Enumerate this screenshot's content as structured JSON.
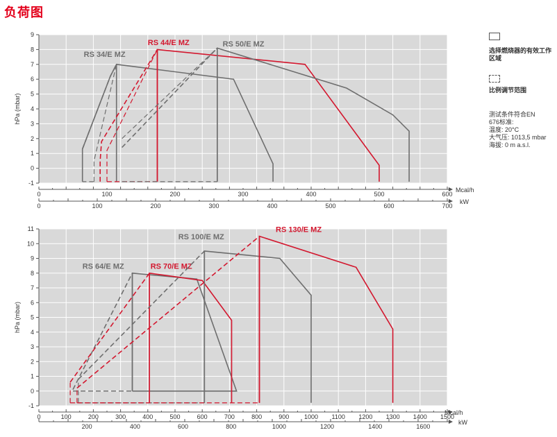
{
  "page_title": "负荷图",
  "legend": {
    "working_area_label": "选择燃烧器的有效工作区域",
    "modulation_label": "比例调节范围",
    "conditions_lines": [
      "测试条件符合EN",
      "676标准:",
      "温度: 20°C",
      "大气压: 1013,5 mbar",
      "海拔: 0 m a.s.l."
    ]
  },
  "colors": {
    "red": "#d3172e",
    "gray": "#6e6e6e",
    "plot_bg": "#d9d9d9",
    "grid": "#ffffff"
  },
  "chart_data": [
    {
      "type": "line",
      "ylabel": "hPa (mbar)",
      "ylim": [
        -1,
        9
      ],
      "yticks": [
        -1,
        0,
        1,
        2,
        3,
        4,
        5,
        6,
        7,
        8,
        9
      ],
      "xlim_mcal": [
        0,
        600
      ],
      "x_axis_mcal": {
        "unit": "Mcal/h",
        "ticks": [
          0,
          100,
          200,
          300,
          400,
          500,
          600
        ]
      },
      "x_axis_kw": {
        "unit": "kW",
        "max": 700,
        "ticks": [
          0,
          100,
          200,
          300,
          400,
          500,
          600,
          700
        ]
      },
      "series": [
        {
          "name": "RS 34/E MZ",
          "color": "gray",
          "label_at": [
            66,
            7.5
          ],
          "solid": [
            [
              64,
              -0.9
            ],
            [
              64,
              1.3
            ],
            [
              105,
              6.2
            ],
            [
              114,
              7.0
            ],
            [
              286,
              6.0
            ],
            [
              344,
              0.3
            ],
            [
              344,
              -0.9
            ]
          ],
          "dashed": [
            [
              64,
              1.3
            ],
            [
              105,
              6.2
            ],
            [
              114,
              7.0
            ]
          ],
          "low_dashed": [
            [
              81,
              -0.9
            ],
            [
              81,
              0.5
            ],
            [
              114,
              7.0
            ]
          ],
          "max_line": [
            [
              114,
              7.0
            ],
            [
              114,
              -0.9
            ]
          ]
        },
        {
          "name": "RS 44/E MZ",
          "color": "red",
          "label_at": [
            160,
            8.3
          ],
          "solid": [
            [
              174,
              -0.9
            ],
            [
              174,
              8.0
            ],
            [
              391,
              7.0
            ],
            [
              500,
              0.2
            ],
            [
              500,
              -0.9
            ]
          ],
          "dashed": [
            [
              90,
              -0.9
            ],
            [
              90,
              0.5
            ],
            [
              92,
              1.8
            ],
            [
              174,
              8.0
            ]
          ],
          "low_dashed": [
            [
              100,
              -0.9
            ],
            [
              100,
              1.2
            ],
            [
              174,
              8.0
            ]
          ],
          "max_line": [
            [
              174,
              8.0
            ],
            [
              174,
              -0.9
            ]
          ]
        },
        {
          "name": "RS 50/E MZ",
          "color": "gray",
          "label_at": [
            270,
            8.2
          ],
          "solid": [
            [
              262,
              -0.9
            ],
            [
              262,
              8.1
            ],
            [
              452,
              5.4
            ],
            [
              520,
              3.6
            ],
            [
              544,
              2.5
            ],
            [
              544,
              -0.9
            ]
          ],
          "dashed": [
            [
              122,
              1.4
            ],
            [
              262,
              8.1
            ]
          ],
          "low_dashed": [
            [
              122,
              2.0
            ],
            [
              262,
              8.1
            ]
          ],
          "max_line": [
            [
              262,
              8.1
            ],
            [
              262,
              -0.9
            ]
          ]
        }
      ]
    },
    {
      "type": "line",
      "ylabel": "hPa (mbar)",
      "ylim": [
        -1,
        11
      ],
      "yticks": [
        -1,
        0,
        1,
        2,
        3,
        4,
        5,
        6,
        7,
        8,
        9,
        10,
        11
      ],
      "xlim_mcal": [
        0,
        1500
      ],
      "x_axis_mcal": {
        "unit": "Mcal/h",
        "ticks": [
          0,
          100,
          200,
          300,
          400,
          500,
          600,
          700,
          800,
          900,
          1000,
          1100,
          1200,
          1300,
          1400,
          1500
        ]
      },
      "x_axis_kw": {
        "unit": "kW",
        "ticks": [
          200,
          400,
          600,
          800,
          1000,
          1200,
          1400,
          1600
        ],
        "max": 1700
      },
      "series": [
        {
          "name": "RS 64/E MZ",
          "color": "gray",
          "label_at": [
            160,
            8.3
          ],
          "solid": [
            [
              343,
              0.0
            ],
            [
              343,
              8.0
            ],
            [
              580,
              7.6
            ],
            [
              726,
              0.0
            ],
            [
              343,
              0.0
            ]
          ],
          "dashed": [
            [
              125,
              0.1
            ],
            [
              343,
              8.0
            ]
          ],
          "low_dashed": [
            [
              125,
              0.0
            ],
            [
              343,
              0.0
            ]
          ],
          "max_line": [
            [
              343,
              8.0
            ],
            [
              343,
              0.0
            ]
          ]
        },
        {
          "name": "RS 70/E MZ",
          "color": "red",
          "label_at": [
            410,
            8.3
          ],
          "solid": [
            [
              406,
              -0.8
            ],
            [
              406,
              8.0
            ],
            [
              600,
              7.5
            ],
            [
              708,
              4.8
            ],
            [
              708,
              -0.8
            ]
          ],
          "dashed": [
            [
              115,
              0.6
            ],
            [
              406,
              8.0
            ]
          ],
          "low_dashed": [
            [
              115,
              -0.8
            ],
            [
              115,
              0.6
            ]
          ],
          "max_line": [
            [
              406,
              8.0
            ],
            [
              406,
              -0.8
            ]
          ]
        },
        {
          "name": "RS 100/E MZ",
          "color": "gray",
          "label_at": [
            512,
            10.3
          ],
          "solid": [
            [
              608,
              -0.8
            ],
            [
              608,
              9.5
            ],
            [
              885,
              9.0
            ],
            [
              1000,
              6.5
            ],
            [
              1000,
              -0.8
            ]
          ],
          "dashed": [
            [
              145,
              0.8
            ],
            [
              608,
              9.5
            ]
          ],
          "low_dashed": [
            [
              145,
              -0.8
            ],
            [
              145,
              0.8
            ]
          ],
          "max_line": [
            [
              608,
              9.5
            ],
            [
              608,
              -0.8
            ]
          ]
        },
        {
          "name": "RS 130/E MZ",
          "color": "red",
          "label_at": [
            870,
            10.8
          ],
          "solid": [
            [
              810,
              -0.8
            ],
            [
              810,
              10.5
            ],
            [
              1165,
              8.4
            ],
            [
              1300,
              4.2
            ],
            [
              1300,
              -0.8
            ]
          ],
          "dashed": [
            [
              140,
              0.2
            ],
            [
              810,
              10.5
            ]
          ],
          "low_dashed": [
            [
              140,
              -0.8
            ],
            [
              140,
              0.2
            ]
          ],
          "max_line": [
            [
              810,
              10.5
            ],
            [
              810,
              -0.8
            ]
          ]
        }
      ]
    }
  ]
}
